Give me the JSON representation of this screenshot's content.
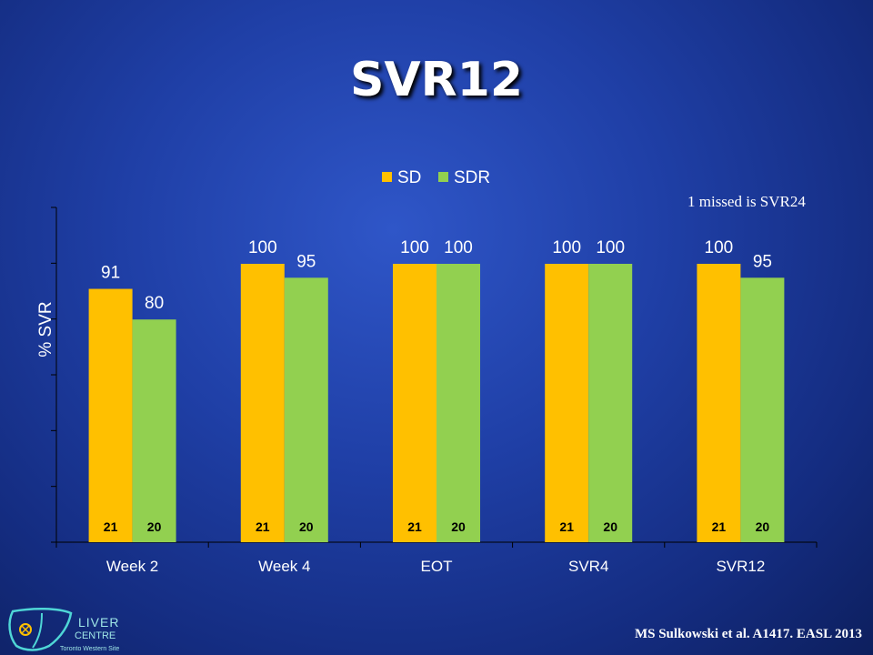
{
  "slide": {
    "title": "SVR12",
    "note": "1 missed is SVR24",
    "citation": "MS Sulkowski et al. A1417. EASL 2013",
    "logo": {
      "word1": "LIVER",
      "word2": "CENTRE",
      "sub": "Toronto Western Site"
    }
  },
  "chart_data": {
    "type": "bar",
    "title": "",
    "xlabel": "",
    "ylabel": "% SVR",
    "ylim": [
      0,
      100
    ],
    "grid": false,
    "legend_position": "top-center",
    "categories": [
      "Week 2",
      "Week 4",
      "EOT",
      "SVR4",
      "SVR12"
    ],
    "series": [
      {
        "name": "SD",
        "color": "#ffc000",
        "values": [
          91,
          100,
          100,
          100,
          100
        ],
        "n": [
          "21",
          "21",
          "21",
          "21",
          "21"
        ]
      },
      {
        "name": "SDR",
        "color": "#92d050",
        "values": [
          80,
          95,
          100,
          100,
          95
        ],
        "n": [
          "20",
          "20",
          "20",
          "20",
          "20"
        ]
      }
    ]
  }
}
